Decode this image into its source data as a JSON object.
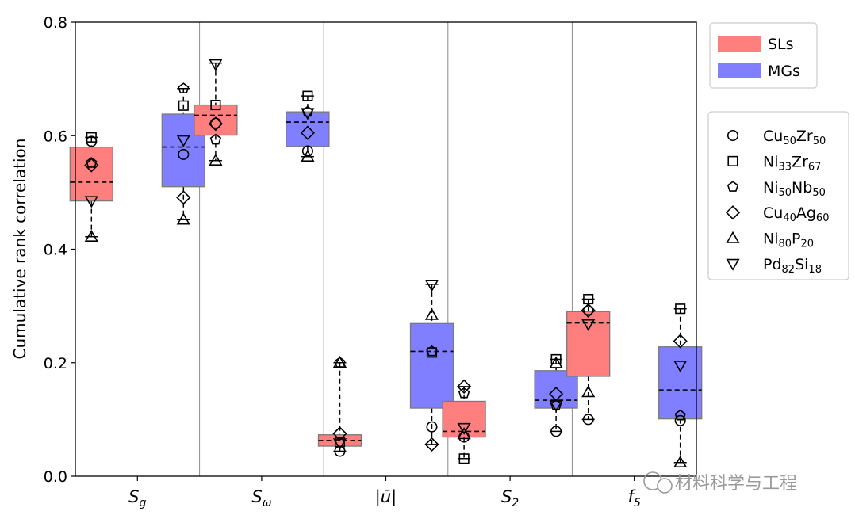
{
  "chart_data": {
    "type": "box",
    "ylabel": "Cumulative rank correlation",
    "ylim": [
      0,
      0.8
    ],
    "yticks": [
      "0.0",
      "0.2",
      "0.4",
      "0.6",
      "0.8"
    ],
    "categories": [
      {
        "base": "S",
        "sub": "g"
      },
      {
        "base": "S",
        "sub": "ω"
      },
      {
        "base": "|ū|",
        "sub": ""
      },
      {
        "base": "S",
        "sub": "2"
      },
      {
        "base": "f",
        "sub": "5"
      }
    ],
    "group_legend": [
      {
        "label": "SLs",
        "color": "#ff7f7f"
      },
      {
        "label": "MGs",
        "color": "#7f7fff"
      }
    ],
    "alloy_legend": [
      {
        "marker": "circle",
        "parts": [
          [
            "Cu",
            ""
          ],
          [
            "50",
            "sub"
          ],
          [
            "Zr",
            ""
          ],
          [
            "50",
            "sub"
          ]
        ]
      },
      {
        "marker": "square",
        "parts": [
          [
            "Ni",
            ""
          ],
          [
            "33",
            "sub"
          ],
          [
            "Zr",
            ""
          ],
          [
            "67",
            "sub"
          ]
        ]
      },
      {
        "marker": "pentagon",
        "parts": [
          [
            "Ni",
            ""
          ],
          [
            "50",
            "sub"
          ],
          [
            "Nb",
            ""
          ],
          [
            "50",
            "sub"
          ]
        ]
      },
      {
        "marker": "diamond",
        "parts": [
          [
            "Cu",
            ""
          ],
          [
            "40",
            "sub"
          ],
          [
            "Ag",
            ""
          ],
          [
            "60",
            "sub"
          ]
        ]
      },
      {
        "marker": "triangle-up",
        "parts": [
          [
            "Ni",
            ""
          ],
          [
            "80",
            "sub"
          ],
          [
            "P",
            ""
          ],
          [
            "20",
            "sub"
          ]
        ]
      },
      {
        "marker": "triangle-down",
        "parts": [
          [
            "Pd",
            ""
          ],
          [
            "82",
            "sub"
          ],
          [
            "Si",
            ""
          ],
          [
            "18",
            "sub"
          ]
        ]
      }
    ],
    "boxes": [
      {
        "category": 0,
        "group": "SLs",
        "q1": 0.485,
        "median": 0.518,
        "q3": 0.58,
        "wlow": 0.422,
        "whigh": 0.597,
        "points": [
          0.59,
          0.597,
          0.552,
          0.548,
          0.422,
          0.485
        ]
      },
      {
        "category": 0,
        "group": "MGs",
        "q1": 0.51,
        "median": 0.58,
        "q3": 0.638,
        "wlow": 0.452,
        "whigh": 0.683,
        "points": [
          0.567,
          0.653,
          0.683,
          0.491,
          0.452,
          0.592
        ]
      },
      {
        "category": 1,
        "group": "SLs",
        "q1": 0.601,
        "median": 0.636,
        "q3": 0.654,
        "wlow": 0.556,
        "whigh": 0.728,
        "points": [
          0.622,
          0.654,
          0.593,
          0.621,
          0.556,
          0.726
        ]
      },
      {
        "category": 1,
        "group": "MGs",
        "q1": 0.581,
        "median": 0.624,
        "q3": 0.642,
        "wlow": 0.563,
        "whigh": 0.67,
        "points": [
          0.573,
          0.67,
          0.642,
          0.605,
          0.563,
          0.64
        ]
      },
      {
        "category": 2,
        "group": "SLs",
        "q1": 0.053,
        "median": 0.063,
        "q3": 0.073,
        "wlow": 0.044,
        "whigh": 0.2,
        "points": [
          0.044,
          0.06,
          0.2,
          0.075,
          0.2,
          0.058
        ]
      },
      {
        "category": 2,
        "group": "MGs",
        "q1": 0.12,
        "median": 0.22,
        "q3": 0.269,
        "wlow": 0.056,
        "whigh": 0.338,
        "points": [
          0.087,
          0.218,
          0.22,
          0.056,
          0.284,
          0.337
        ]
      },
      {
        "category": 3,
        "group": "SLs",
        "q1": 0.069,
        "median": 0.079,
        "q3": 0.132,
        "wlow": 0.031,
        "whigh": 0.158,
        "points": [
          0.069,
          0.031,
          0.146,
          0.158,
          0.074,
          0.085
        ]
      },
      {
        "category": 3,
        "group": "MGs",
        "q1": 0.12,
        "median": 0.134,
        "q3": 0.186,
        "wlow": 0.079,
        "whigh": 0.206,
        "points": [
          0.079,
          0.206,
          0.125,
          0.145,
          0.199,
          0.125
        ]
      },
      {
        "category": 4,
        "group": "SLs",
        "q1": 0.176,
        "median": 0.27,
        "q3": 0.29,
        "wlow": 0.1,
        "whigh": 0.312,
        "points": [
          0.1,
          0.312,
          0.292,
          0.292,
          0.148,
          0.268
        ]
      },
      {
        "category": 4,
        "group": "MGs",
        "q1": 0.101,
        "median": 0.152,
        "q3": 0.228,
        "wlow": 0.024,
        "whigh": 0.295,
        "points": [
          0.098,
          0.295,
          0.107,
          0.238,
          0.024,
          0.195
        ]
      }
    ]
  },
  "watermark": "材料科学与工程"
}
